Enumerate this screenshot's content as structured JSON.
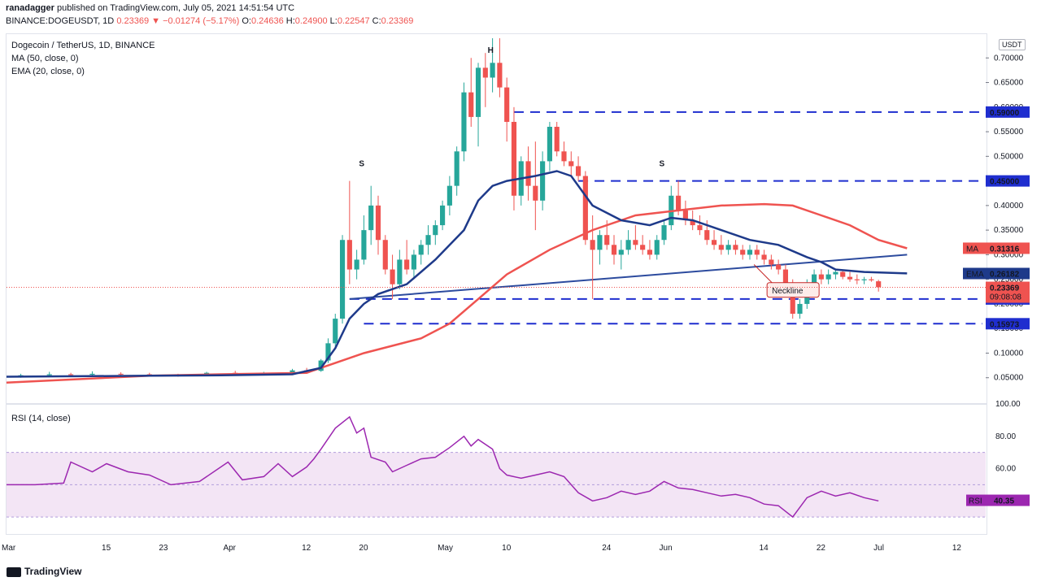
{
  "header": {
    "author": "ranadagger",
    "published_text": "published on TradingView.com, July 05, 2021 14:51:54 UTC",
    "symbol": "BINANCE:DOGEUSDT, 1D",
    "last": "0.23369",
    "change": "▼ −0.01274 (−5.17%)",
    "o_label": "O:",
    "o": "0.24636",
    "h_label": "H:",
    "h": "0.24900",
    "l_label": "L:",
    "l": "0.22547",
    "c_label": "C:",
    "c": "0.23369"
  },
  "legend": {
    "title": "Dogecoin / TetherUS, 1D, BINANCE",
    "ma": "MA (50, close, 0)",
    "ema": "EMA (20, close, 0)",
    "rsi": "RSI (14, close)"
  },
  "currency_button": "USDT",
  "footer": {
    "brand": "TradingView"
  },
  "colors": {
    "up": "#26a69a",
    "down": "#ef5350",
    "ma": "#ef5350",
    "ema": "#1e3a8a",
    "levels": "#1f2ecf",
    "neckline": "#2c4b9e",
    "rsi_line": "#9c27b0",
    "rsi_band": "#f3e5f5"
  },
  "chart_data": [
    {
      "type": "candlestick",
      "title": "Dogecoin / TetherUS, 1D, BINANCE",
      "ylim": [
        0,
        0.75
      ],
      "y_ticks": [
        "0.05000",
        "0.10000",
        "0.15000",
        "0.20000",
        "0.25000",
        "0.30000",
        "0.35000",
        "0.40000",
        "0.45000",
        "0.50000",
        "0.55000",
        "0.60000",
        "0.65000",
        "0.70000"
      ],
      "x_ticks": [
        "Mar",
        "15",
        "23",
        "Apr",
        "12",
        "20",
        "May",
        "10",
        "24",
        "Jun",
        "14",
        "22",
        "Jul",
        "12"
      ],
      "x_tick_days": [
        0,
        14,
        22,
        31,
        42,
        50,
        61,
        70,
        84,
        92,
        106,
        114,
        122,
        133
      ],
      "x_range_days": [
        0,
        137
      ],
      "series": {
        "ma50": [
          [
            0,
            0.04
          ],
          [
            20,
            0.054
          ],
          [
            30,
            0.057
          ],
          [
            42,
            0.06
          ],
          [
            46,
            0.08
          ],
          [
            50,
            0.1
          ],
          [
            58,
            0.13
          ],
          [
            62,
            0.16
          ],
          [
            66,
            0.21
          ],
          [
            70,
            0.26
          ],
          [
            76,
            0.31
          ],
          [
            82,
            0.35
          ],
          [
            88,
            0.38
          ],
          [
            94,
            0.39
          ],
          [
            100,
            0.4
          ],
          [
            106,
            0.403
          ],
          [
            110,
            0.4
          ],
          [
            114,
            0.38
          ],
          [
            118,
            0.36
          ],
          [
            122,
            0.33
          ],
          [
            126,
            0.313
          ]
        ],
        "ema20": [
          [
            0,
            0.052
          ],
          [
            20,
            0.054
          ],
          [
            30,
            0.055
          ],
          [
            40,
            0.057
          ],
          [
            44,
            0.07
          ],
          [
            46,
            0.11
          ],
          [
            48,
            0.17
          ],
          [
            50,
            0.2
          ],
          [
            52,
            0.22
          ],
          [
            56,
            0.24
          ],
          [
            60,
            0.29
          ],
          [
            64,
            0.35
          ],
          [
            66,
            0.41
          ],
          [
            68,
            0.44
          ],
          [
            70,
            0.45
          ],
          [
            74,
            0.46
          ],
          [
            77,
            0.47
          ],
          [
            79,
            0.46
          ],
          [
            82,
            0.4
          ],
          [
            86,
            0.37
          ],
          [
            90,
            0.36
          ],
          [
            93,
            0.375
          ],
          [
            96,
            0.37
          ],
          [
            100,
            0.35
          ],
          [
            104,
            0.33
          ],
          [
            108,
            0.32
          ],
          [
            112,
            0.295
          ],
          [
            114,
            0.285
          ],
          [
            116,
            0.27
          ],
          [
            120,
            0.265
          ],
          [
            126,
            0.262
          ]
        ]
      },
      "candles": [
        [
          2,
          0.052,
          0.058,
          0.05,
          0.055
        ],
        [
          6,
          0.055,
          0.062,
          0.053,
          0.057
        ],
        [
          9,
          0.057,
          0.06,
          0.054,
          0.056
        ],
        [
          12,
          0.056,
          0.063,
          0.054,
          0.058
        ],
        [
          16,
          0.058,
          0.061,
          0.055,
          0.057
        ],
        [
          20,
          0.057,
          0.06,
          0.054,
          0.055
        ],
        [
          24,
          0.055,
          0.058,
          0.052,
          0.054
        ],
        [
          28,
          0.054,
          0.062,
          0.053,
          0.06
        ],
        [
          32,
          0.06,
          0.064,
          0.056,
          0.058
        ],
        [
          36,
          0.058,
          0.062,
          0.056,
          0.06
        ],
        [
          40,
          0.06,
          0.068,
          0.058,
          0.065
        ],
        [
          42,
          0.065,
          0.07,
          0.06,
          0.064
        ],
        [
          44,
          0.064,
          0.088,
          0.062,
          0.085
        ],
        [
          45,
          0.085,
          0.13,
          0.08,
          0.12
        ],
        [
          46,
          0.12,
          0.18,
          0.11,
          0.17
        ],
        [
          47,
          0.17,
          0.34,
          0.16,
          0.33
        ],
        [
          48,
          0.33,
          0.45,
          0.24,
          0.27
        ],
        [
          49,
          0.27,
          0.31,
          0.25,
          0.29
        ],
        [
          50,
          0.29,
          0.38,
          0.28,
          0.35
        ],
        [
          51,
          0.35,
          0.44,
          0.32,
          0.4
        ],
        [
          52,
          0.4,
          0.42,
          0.3,
          0.33
        ],
        [
          53,
          0.33,
          0.34,
          0.26,
          0.27
        ],
        [
          54,
          0.27,
          0.3,
          0.21,
          0.24
        ],
        [
          55,
          0.24,
          0.31,
          0.23,
          0.29
        ],
        [
          56,
          0.29,
          0.33,
          0.26,
          0.27
        ],
        [
          57,
          0.27,
          0.31,
          0.25,
          0.3
        ],
        [
          58,
          0.3,
          0.33,
          0.28,
          0.32
        ],
        [
          59,
          0.32,
          0.36,
          0.3,
          0.34
        ],
        [
          60,
          0.34,
          0.37,
          0.32,
          0.36
        ],
        [
          61,
          0.36,
          0.41,
          0.35,
          0.4
        ],
        [
          62,
          0.4,
          0.46,
          0.38,
          0.44
        ],
        [
          63,
          0.44,
          0.52,
          0.42,
          0.51
        ],
        [
          64,
          0.51,
          0.65,
          0.49,
          0.63
        ],
        [
          65,
          0.63,
          0.7,
          0.56,
          0.58
        ],
        [
          66,
          0.58,
          0.69,
          0.52,
          0.68
        ],
        [
          67,
          0.68,
          0.71,
          0.6,
          0.66
        ],
        [
          68,
          0.66,
          0.74,
          0.63,
          0.69
        ],
        [
          69,
          0.69,
          0.74,
          0.62,
          0.64
        ],
        [
          70,
          0.64,
          0.66,
          0.53,
          0.57
        ],
        [
          71,
          0.57,
          0.6,
          0.39,
          0.42
        ],
        [
          72,
          0.42,
          0.5,
          0.4,
          0.49
        ],
        [
          73,
          0.49,
          0.52,
          0.41,
          0.44
        ],
        [
          74,
          0.44,
          0.53,
          0.35,
          0.41
        ],
        [
          75,
          0.41,
          0.51,
          0.39,
          0.49
        ],
        [
          76,
          0.49,
          0.57,
          0.47,
          0.56
        ],
        [
          77,
          0.56,
          0.57,
          0.5,
          0.51
        ],
        [
          78,
          0.51,
          0.53,
          0.48,
          0.49
        ],
        [
          79,
          0.49,
          0.51,
          0.46,
          0.48
        ],
        [
          80,
          0.48,
          0.5,
          0.45,
          0.46
        ],
        [
          81,
          0.46,
          0.47,
          0.32,
          0.33
        ],
        [
          82,
          0.33,
          0.38,
          0.21,
          0.31
        ],
        [
          83,
          0.31,
          0.35,
          0.28,
          0.34
        ],
        [
          84,
          0.34,
          0.37,
          0.31,
          0.32
        ],
        [
          85,
          0.32,
          0.34,
          0.28,
          0.3
        ],
        [
          86,
          0.3,
          0.33,
          0.27,
          0.31
        ],
        [
          87,
          0.31,
          0.35,
          0.3,
          0.33
        ],
        [
          88,
          0.33,
          0.36,
          0.31,
          0.32
        ],
        [
          89,
          0.32,
          0.34,
          0.3,
          0.31
        ],
        [
          90,
          0.31,
          0.33,
          0.29,
          0.3
        ],
        [
          91,
          0.3,
          0.34,
          0.29,
          0.33
        ],
        [
          92,
          0.33,
          0.37,
          0.32,
          0.36
        ],
        [
          93,
          0.36,
          0.44,
          0.35,
          0.42
        ],
        [
          94,
          0.42,
          0.45,
          0.38,
          0.39
        ],
        [
          95,
          0.39,
          0.41,
          0.36,
          0.37
        ],
        [
          96,
          0.37,
          0.39,
          0.35,
          0.36
        ],
        [
          97,
          0.36,
          0.38,
          0.34,
          0.35
        ],
        [
          98,
          0.35,
          0.37,
          0.32,
          0.33
        ],
        [
          99,
          0.33,
          0.35,
          0.31,
          0.32
        ],
        [
          100,
          0.32,
          0.34,
          0.3,
          0.31
        ],
        [
          101,
          0.31,
          0.33,
          0.3,
          0.32
        ],
        [
          102,
          0.32,
          0.33,
          0.3,
          0.31
        ],
        [
          103,
          0.31,
          0.32,
          0.29,
          0.3
        ],
        [
          104,
          0.3,
          0.32,
          0.29,
          0.31
        ],
        [
          105,
          0.31,
          0.32,
          0.29,
          0.3
        ],
        [
          106,
          0.3,
          0.31,
          0.28,
          0.29
        ],
        [
          107,
          0.29,
          0.3,
          0.27,
          0.28
        ],
        [
          108,
          0.28,
          0.29,
          0.26,
          0.27
        ],
        [
          109,
          0.27,
          0.28,
          0.23,
          0.24
        ],
        [
          110,
          0.24,
          0.25,
          0.17,
          0.18
        ],
        [
          111,
          0.18,
          0.21,
          0.17,
          0.2
        ],
        [
          112,
          0.2,
          0.25,
          0.19,
          0.24
        ],
        [
          113,
          0.24,
          0.27,
          0.23,
          0.26
        ],
        [
          114,
          0.26,
          0.27,
          0.24,
          0.25
        ],
        [
          115,
          0.25,
          0.27,
          0.24,
          0.26
        ],
        [
          116,
          0.26,
          0.27,
          0.25,
          0.265
        ],
        [
          117,
          0.265,
          0.27,
          0.25,
          0.255
        ],
        [
          118,
          0.255,
          0.265,
          0.245,
          0.25
        ],
        [
          119,
          0.25,
          0.26,
          0.24,
          0.248
        ],
        [
          120,
          0.248,
          0.255,
          0.24,
          0.25
        ],
        [
          121,
          0.25,
          0.255,
          0.245,
          0.248
        ],
        [
          122,
          0.246,
          0.249,
          0.225,
          0.234
        ]
      ],
      "levels": [
        {
          "value": 0.59,
          "label": "0.59000",
          "from_day": 71
        },
        {
          "value": 0.45,
          "label": "0.45000",
          "from_day": 80
        },
        {
          "value": 0.21,
          "label": "0.21000",
          "from_day": 48
        },
        {
          "value": 0.15973,
          "label": "0.15973",
          "from_day": 50
        }
      ],
      "neckline": [
        [
          48,
          0.21
        ],
        [
          126,
          0.3
        ]
      ],
      "annotations": [
        {
          "text": "S",
          "day": 50,
          "value": 0.48
        },
        {
          "text": "H",
          "day": 68,
          "value": 0.71
        },
        {
          "text": "S",
          "day": 92,
          "value": 0.48
        },
        {
          "text": "Neckline",
          "day": 108,
          "value": 0.23
        }
      ],
      "price_labels": [
        {
          "text": "MA",
          "value": "0.31316",
          "y": 0.31316
        },
        {
          "text": "EMA",
          "value": "0.26182",
          "y": 0.26182
        },
        {
          "text": "",
          "value": "0.23369",
          "sub": "09:08:08",
          "y": 0.23369
        }
      ]
    },
    {
      "type": "line",
      "title": "RSI (14, close)",
      "ylim": [
        20,
        100
      ],
      "y_ticks": [
        "60.00",
        "80.00",
        "100.00"
      ],
      "band": [
        30,
        70
      ],
      "x_range_days": [
        0,
        137
      ],
      "series": [
        {
          "name": "RSI",
          "values": [
            [
              0,
              50
            ],
            [
              4,
              50
            ],
            [
              8,
              51
            ],
            [
              9,
              64
            ],
            [
              12,
              58
            ],
            [
              14,
              63
            ],
            [
              17,
              58
            ],
            [
              20,
              56
            ],
            [
              23,
              50
            ],
            [
              25,
              51
            ],
            [
              27,
              52
            ],
            [
              31,
              64
            ],
            [
              33,
              53
            ],
            [
              36,
              55
            ],
            [
              38,
              63
            ],
            [
              40,
              55
            ],
            [
              42,
              61
            ],
            [
              43,
              66
            ],
            [
              44,
              72
            ],
            [
              46,
              85
            ],
            [
              48,
              92
            ],
            [
              49,
              82
            ],
            [
              50,
              85
            ],
            [
              51,
              67
            ],
            [
              53,
              64
            ],
            [
              54,
              58
            ],
            [
              56,
              62
            ],
            [
              58,
              66
            ],
            [
              60,
              67
            ],
            [
              62,
              73
            ],
            [
              64,
              80
            ],
            [
              65,
              74
            ],
            [
              66,
              78
            ],
            [
              68,
              72
            ],
            [
              69,
              60
            ],
            [
              70,
              56
            ],
            [
              72,
              54
            ],
            [
              74,
              56
            ],
            [
              76,
              58
            ],
            [
              78,
              55
            ],
            [
              80,
              45
            ],
            [
              82,
              40
            ],
            [
              84,
              42
            ],
            [
              86,
              46
            ],
            [
              88,
              44
            ],
            [
              90,
              46
            ],
            [
              92,
              52
            ],
            [
              94,
              48
            ],
            [
              96,
              47
            ],
            [
              98,
              45
            ],
            [
              100,
              43
            ],
            [
              102,
              44
            ],
            [
              104,
              42
            ],
            [
              106,
              38
            ],
            [
              108,
              37
            ],
            [
              110,
              30
            ],
            [
              112,
              42
            ],
            [
              114,
              46
            ],
            [
              116,
              43
            ],
            [
              118,
              45
            ],
            [
              120,
              42
            ],
            [
              122,
              40
            ]
          ]
        }
      ],
      "last_label": {
        "text": "RSI",
        "value": "40.35"
      }
    }
  ]
}
